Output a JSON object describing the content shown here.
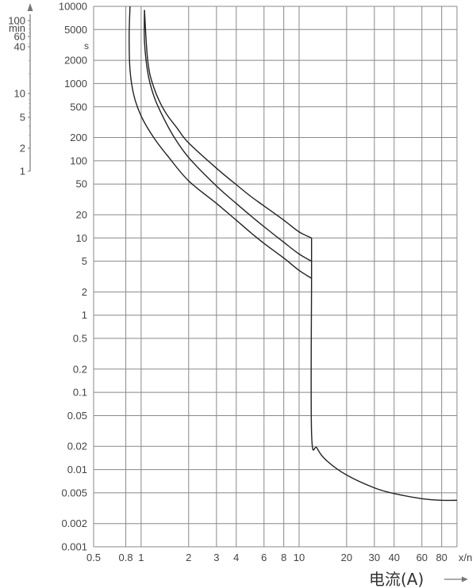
{
  "chart_data": {
    "type": "line",
    "title": "",
    "xlabel": "电流(A)",
    "x_unit_label": "x/n",
    "ylabel_seconds": "s",
    "ylabel_minutes": "min",
    "x_scale": "log",
    "y_scale": "log",
    "xlim": [
      0.5,
      100
    ],
    "ylim": [
      0.001,
      10000
    ],
    "x_ticks": [
      0.5,
      0.8,
      1,
      2,
      3,
      4,
      6,
      8,
      10,
      20,
      30,
      40,
      60,
      80
    ],
    "x_tick_labels": [
      "0.5",
      "0.8",
      "1",
      "2",
      "3",
      "4",
      "6",
      "8",
      "10",
      "20",
      "30",
      "40",
      "60",
      "80"
    ],
    "y_ticks": [
      10000,
      5000,
      2000,
      1000,
      500,
      200,
      100,
      50,
      20,
      10,
      5,
      2,
      1,
      0.5,
      0.2,
      0.1,
      0.05,
      0.02,
      0.01,
      0.005,
      0.002,
      0.001
    ],
    "y_tick_labels": [
      "10000",
      "5000",
      "2000",
      "1000",
      "500",
      "200",
      "100",
      "50",
      "20",
      "10",
      "5",
      "2",
      "1",
      "0.5",
      "0.2",
      "0.1",
      "0.05",
      "0.02",
      "0.01",
      "0.005",
      "0.002",
      "0.001"
    ],
    "minute_ticks": [
      100,
      60,
      40,
      10,
      5,
      2,
      1
    ],
    "minute_tick_labels": [
      "100",
      "60",
      "40",
      "10",
      "5",
      "2",
      "1"
    ],
    "grid": true,
    "series": [
      {
        "values": [
          [
            0.85,
            10000
          ],
          [
            0.84,
            4000
          ],
          [
            0.85,
            1500
          ],
          [
            0.9,
            700
          ],
          [
            1.0,
            380
          ],
          [
            1.2,
            200
          ],
          [
            1.5,
            110
          ],
          [
            2.0,
            55
          ],
          [
            3.0,
            28
          ],
          [
            4.0,
            17
          ],
          [
            5.0,
            11.5
          ],
          [
            6.0,
            8.5
          ],
          [
            8.0,
            5.5
          ],
          [
            10.0,
            3.8
          ],
          [
            12.0,
            3.0
          ]
        ]
      },
      {
        "values": [
          [
            1.05,
            9000
          ],
          [
            1.05,
            3500
          ],
          [
            1.1,
            1400
          ],
          [
            1.2,
            700
          ],
          [
            1.35,
            400
          ],
          [
            1.6,
            210
          ],
          [
            2.0,
            110
          ],
          [
            3.0,
            47
          ],
          [
            4.0,
            28
          ],
          [
            5.0,
            19
          ],
          [
            6.0,
            14
          ],
          [
            8.0,
            8.8
          ],
          [
            10.0,
            6.2
          ],
          [
            12.0,
            5.0
          ]
        ]
      },
      {
        "values": [
          [
            1.05,
            9000
          ],
          [
            1.1,
            2000
          ],
          [
            1.2,
            900
          ],
          [
            1.4,
            450
          ],
          [
            1.7,
            260
          ],
          [
            2.0,
            170
          ],
          [
            3.0,
            80
          ],
          [
            4.0,
            49
          ],
          [
            5.0,
            34
          ],
          [
            6.0,
            26
          ],
          [
            8.0,
            17
          ],
          [
            10.0,
            12
          ],
          [
            12.0,
            10
          ]
        ]
      },
      {
        "values": [
          [
            12.0,
            10
          ],
          [
            12.0,
            5.0
          ],
          [
            12.0,
            3.0
          ],
          [
            12.0,
            0.03
          ],
          [
            13.0,
            0.019
          ],
          [
            15.0,
            0.013
          ],
          [
            20.0,
            0.0085
          ],
          [
            30.0,
            0.0058
          ],
          [
            40.0,
            0.0049
          ],
          [
            60.0,
            0.0042
          ],
          [
            80.0,
            0.004
          ],
          [
            100.0,
            0.004
          ]
        ]
      }
    ]
  }
}
